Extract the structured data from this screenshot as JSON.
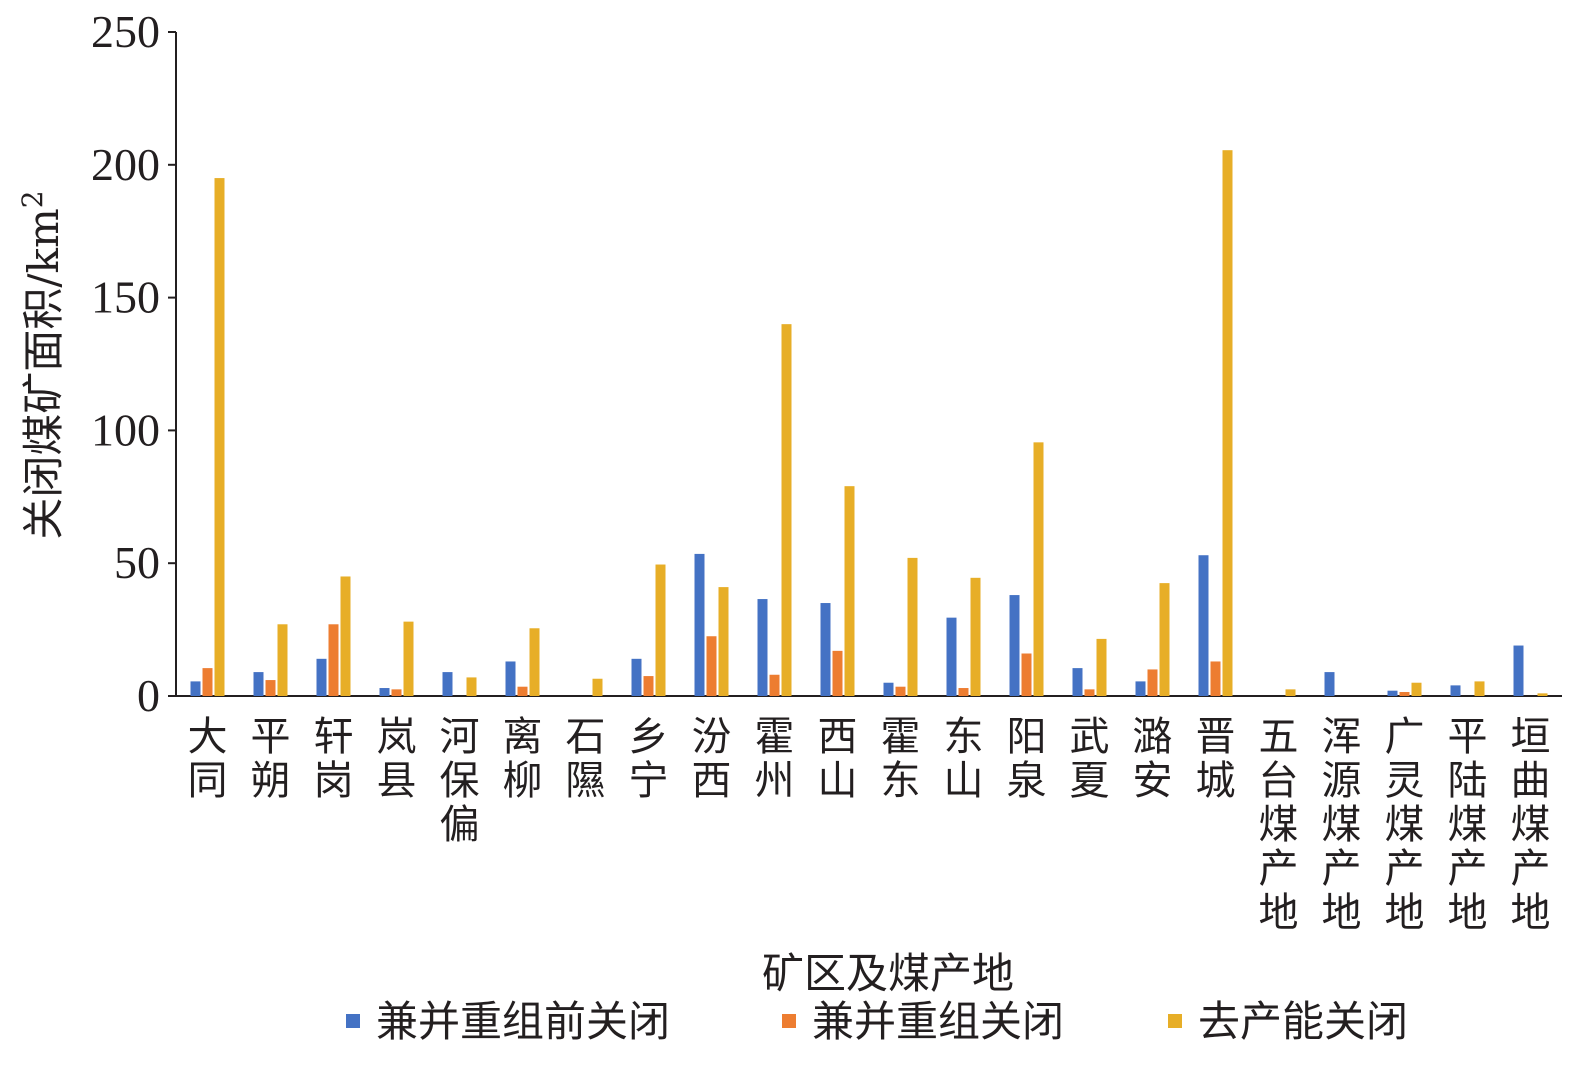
{
  "chart_data": {
    "type": "bar",
    "title": "",
    "xlabel": "矿区及煤产地",
    "ylabel": "关闭煤矿面积/km",
    "ylabel_sup": "2",
    "ylim": [
      0,
      250
    ],
    "yticks": [
      "0",
      "50",
      "100",
      "150",
      "200",
      "250"
    ],
    "grid": false,
    "legend_position": "bottom",
    "categories": [
      "大同",
      "平朔",
      "轩岗",
      "岚县",
      "河保偏",
      "离柳",
      "石隰",
      "乡宁",
      "汾西",
      "霍州",
      "西山",
      "霍东",
      "东山",
      "阳泉",
      "武夏",
      "潞安",
      "晋城",
      "五台煤产地",
      "浑源煤产地",
      "广灵煤产地",
      "平陆煤产地",
      "垣曲煤产地"
    ],
    "series": [
      {
        "name": "兼并重组前关闭",
        "color": "#4472c4",
        "values": [
          5.5,
          9,
          14,
          3,
          9,
          13,
          0,
          14,
          53.5,
          36.5,
          35,
          5,
          29.5,
          38,
          10.5,
          5.5,
          53,
          0,
          9,
          2,
          4,
          19
        ]
      },
      {
        "name": "兼并重组关闭",
        "color": "#ed7d31",
        "values": [
          10.5,
          6,
          27,
          2.5,
          0,
          3.5,
          0,
          7.5,
          22.5,
          8,
          17,
          3.5,
          3,
          16,
          2.5,
          10,
          13,
          0,
          0,
          1.5,
          0,
          0
        ]
      },
      {
        "name": "去产能关闭",
        "color": "#e7ae27",
        "values": [
          195,
          27,
          45,
          28,
          7,
          25.5,
          6.5,
          49.5,
          41,
          140,
          79,
          52,
          44.5,
          95.5,
          21.5,
          42.5,
          205.5,
          2.5,
          0,
          5,
          5.5,
          1
        ]
      }
    ]
  }
}
